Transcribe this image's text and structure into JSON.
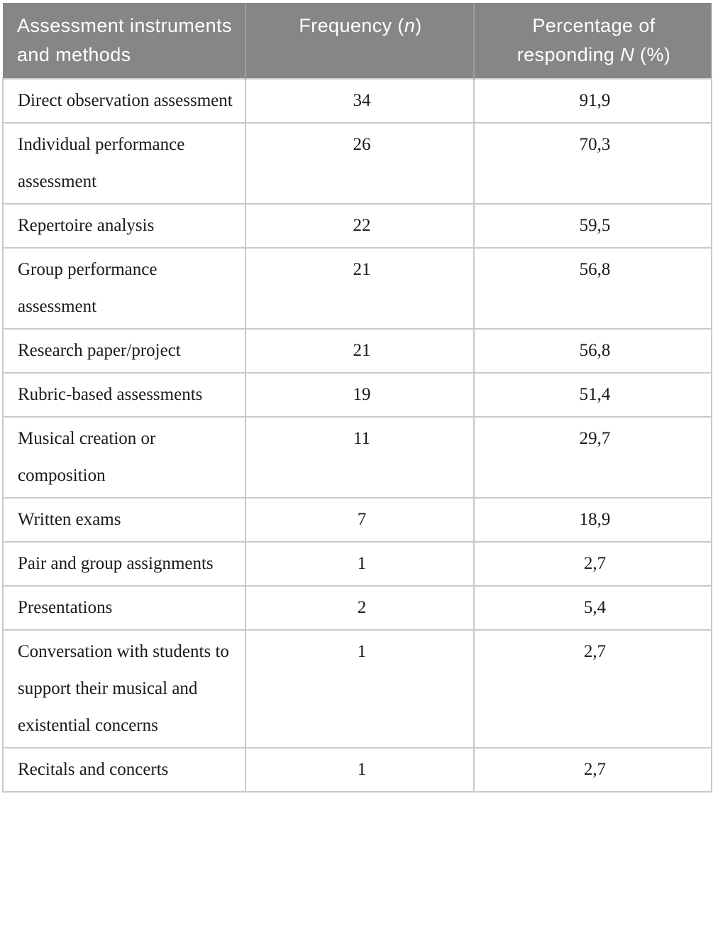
{
  "colors": {
    "header_background": "#868686",
    "header_text": "#ffffff",
    "header_divider": "#9e9e9e",
    "body_border": "#c9c9c9",
    "body_text": "#1a1a1a"
  },
  "table": {
    "header": {
      "col1": "Assessment instruments and methods",
      "col2_pre": "Frequency (",
      "col2_italic": "n",
      "col2_post": ")",
      "col3_pre": "Percentage of responding ",
      "col3_italic": "N",
      "col3_post": " (%)"
    },
    "rows": [
      {
        "method": "Direct observation assessment",
        "frequency": "34",
        "percentage": "91,9"
      },
      {
        "method": "Individual performance assessment",
        "frequency": "26",
        "percentage": "70,3"
      },
      {
        "method": "Repertoire analysis",
        "frequency": "22",
        "percentage": "59,5"
      },
      {
        "method": "Group performance assessment",
        "frequency": "21",
        "percentage": "56,8"
      },
      {
        "method": "Research paper/project",
        "frequency": "21",
        "percentage": "56,8"
      },
      {
        "method": "Rubric-based assessments",
        "frequency": "19",
        "percentage": "51,4"
      },
      {
        "method": "Musical creation or composition",
        "frequency": "11",
        "percentage": "29,7"
      },
      {
        "method": "Written exams",
        "frequency": "7",
        "percentage": "18,9"
      },
      {
        "method": "Pair and group assignments",
        "frequency": "1",
        "percentage": "2,7"
      },
      {
        "method": "Presentations",
        "frequency": "2",
        "percentage": "5,4"
      },
      {
        "method": "Conversation with students to support their musical and existential concerns",
        "frequency": "1",
        "percentage": "2,7"
      },
      {
        "method": "Recitals and concerts",
        "frequency": "1",
        "percentage": "2,7"
      }
    ]
  },
  "chart_data": {
    "type": "table",
    "title": "Assessment instruments and methods",
    "columns": [
      "Assessment instruments and methods",
      "Frequency (n)",
      "Percentage of responding N (%)"
    ],
    "categories": [
      "Direct observation assessment",
      "Individual performance assessment",
      "Repertoire analysis",
      "Group performance assessment",
      "Research paper/project",
      "Rubric-based assessments",
      "Musical creation or composition",
      "Written exams",
      "Pair and group assignments",
      "Presentations",
      "Conversation with students to support their musical and existential concerns",
      "Recitals and concerts"
    ],
    "series": [
      {
        "name": "Frequency (n)",
        "values": [
          34,
          26,
          22,
          21,
          21,
          19,
          11,
          7,
          1,
          2,
          1,
          1
        ]
      },
      {
        "name": "Percentage of responding N (%)",
        "values": [
          91.9,
          70.3,
          59.5,
          56.8,
          56.8,
          51.4,
          29.7,
          18.9,
          2.7,
          5.4,
          2.7,
          2.7
        ]
      }
    ]
  }
}
